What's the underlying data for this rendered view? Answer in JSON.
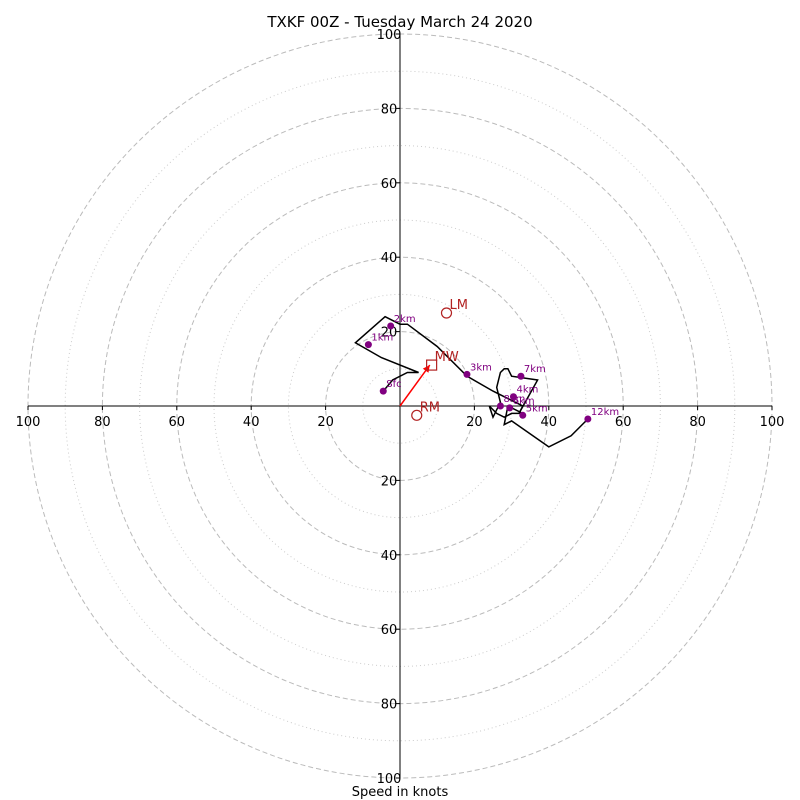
{
  "chart_data": {
    "type": "hodograph",
    "title": "TXKF 00Z - Tuesday March 24 2020",
    "xlabel": "Speed in knots",
    "range": [
      -100,
      100
    ],
    "ring_values_major": [
      20,
      40,
      60,
      80,
      100
    ],
    "ring_values_minor": [
      10,
      30,
      50,
      70,
      90
    ],
    "x_tick_labels": [
      "100",
      "80",
      "60",
      "40",
      "20",
      "20",
      "40",
      "60",
      "80",
      "100"
    ],
    "x_tick_values": [
      -100,
      -80,
      -60,
      -40,
      -20,
      20,
      40,
      60,
      80,
      100
    ],
    "y_tick_labels": [
      "100",
      "80",
      "60",
      "40",
      "20",
      "20",
      "40",
      "60",
      "80",
      "100"
    ],
    "y_tick_values": [
      100,
      80,
      60,
      40,
      20,
      -20,
      -40,
      -60,
      -80,
      -100
    ],
    "hodograph_u": [
      -4.5,
      -2,
      2,
      5,
      -5,
      -12,
      -4,
      0,
      2,
      10,
      18,
      25,
      33,
      32,
      37,
      30,
      29,
      28,
      27,
      26,
      27,
      25,
      24,
      26,
      28,
      30,
      33,
      29,
      28,
      30,
      40,
      46,
      50
    ],
    "hodograph_v": [
      4,
      7,
      9,
      9,
      13,
      17,
      24,
      22,
      22,
      16,
      8,
      4,
      0,
      -2,
      7,
      8,
      10,
      10,
      9,
      5,
      1,
      -3,
      0,
      -2,
      -3,
      -2,
      -2,
      0,
      -5,
      -4,
      -11,
      -8,
      -4
    ],
    "height_labels": [
      {
        "label": "Sfc",
        "u": -4.5,
        "v": 4
      },
      {
        "label": "1km",
        "u": -8.5,
        "v": 16.5
      },
      {
        "label": "2km",
        "u": -2.5,
        "v": 21.5
      },
      {
        "label": "3km",
        "u": 18,
        "v": 8.5
      },
      {
        "label": "4km",
        "u": 30.5,
        "v": 2.5
      },
      {
        "label": "5km",
        "u": 33,
        "v": -2.5
      },
      {
        "label": "6km",
        "u": 29.5,
        "v": -0.5
      },
      {
        "label": "7km",
        "u": 32.5,
        "v": 8
      },
      {
        "label": "8km",
        "u": 27,
        "v": 0
      },
      {
        "label": "12km",
        "u": 50.5,
        "v": -3.5
      }
    ],
    "storm_vectors": [
      {
        "label": "LM",
        "u": 12.5,
        "v": 25,
        "marker": "circle"
      },
      {
        "label": "MW",
        "u": 8.5,
        "v": 11,
        "marker": "square"
      },
      {
        "label": "RM",
        "u": 4.5,
        "v": -2.5,
        "marker": "circle"
      }
    ],
    "mean_wind_arrow": {
      "u": 8,
      "v": 11
    },
    "colors": {
      "hodograph": "#000000",
      "height_markers": "#800080",
      "storm_markers": "#b22222",
      "arrow": "#ff0000",
      "major_rings": "#bbbbbb",
      "minor_rings": "#cccccc"
    }
  }
}
